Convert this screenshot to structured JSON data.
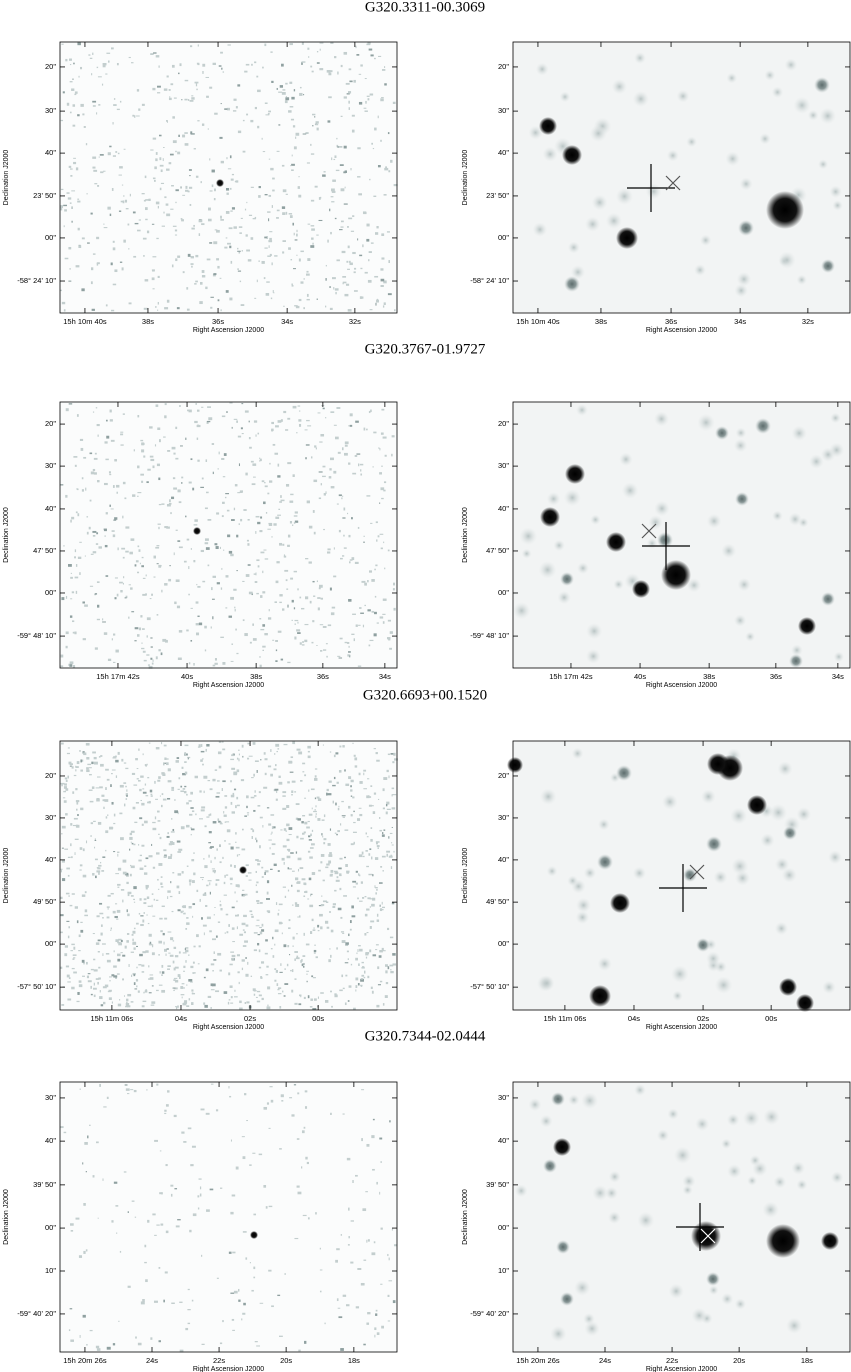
{
  "rows": [
    {
      "title": "G320.3311-00.3069",
      "yticks": [
        "20\"",
        "30\"",
        "40\"",
        "23' 50\"",
        "00\"",
        "-58° 24' 10\""
      ],
      "xticks": [
        "15h 10m 40s",
        "38s",
        "36s",
        "34s",
        "32s"
      ],
      "y_label": "Declination J2000",
      "x_label": "Right Ascension J2000"
    },
    {
      "title": "G320.3767-01.9727",
      "yticks": [
        "20\"",
        "30\"",
        "40\"",
        "47' 50\"",
        "00\"",
        "-59° 48' 10\""
      ],
      "xticks": [
        "15h 17m 42s",
        "40s",
        "38s",
        "36s",
        "34s"
      ],
      "y_label": "Declination J2000",
      "x_label": "Right Ascension J2000"
    },
    {
      "title": "G320.6693+00.1520",
      "yticks": [
        "20\"",
        "30\"",
        "40\"",
        "49' 50\"",
        "00\"",
        "-57° 50' 10\""
      ],
      "xticks": [
        "15h 11m 06s",
        "04s",
        "02s",
        "00s"
      ],
      "y_label": "Declination J2000",
      "x_label": "Right Ascension J2000"
    },
    {
      "title": "G320.7344-02.0444",
      "yticks": [
        "30\"",
        "40\"",
        "39' 50\"",
        "00\"",
        "10\"",
        "-59° 40' 20\""
      ],
      "xticks": [
        "15h 20m 26s",
        "24s",
        "22s",
        "20s",
        "18s"
      ],
      "y_label": "Declination J2000",
      "x_label": "Right Ascension J2000"
    }
  ]
}
